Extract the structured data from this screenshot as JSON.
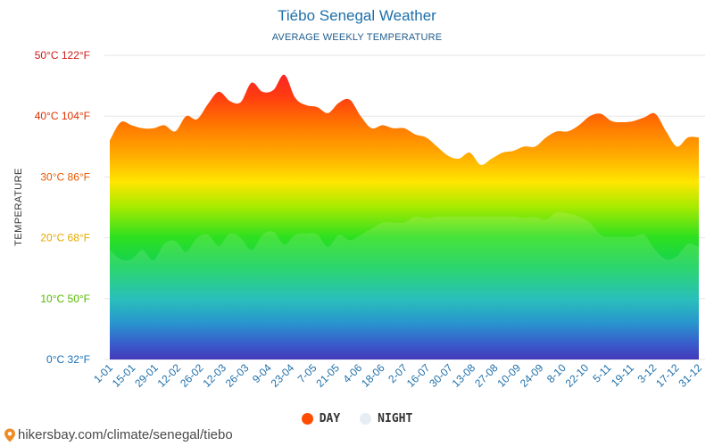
{
  "header": {
    "title": "Tiébo Senegal Weather",
    "subtitle": "AVERAGE WEEKLY TEMPERATURE"
  },
  "legend": {
    "day_label": "DAY",
    "night_label": "NIGHT",
    "day_color": "#ff4d00",
    "night_color": "#e6edf5"
  },
  "footer": {
    "url": "hikersbay.com/climate/senegal/tiebo",
    "pin_color": "#f08a24"
  },
  "chart_data": {
    "type": "area",
    "title": "Tiébo Senegal Weather",
    "subtitle": "AVERAGE WEEKLY TEMPERATURE",
    "ylabel": "TEMPERATURE",
    "ylim": [
      0,
      50
    ],
    "y_ticks": [
      {
        "value": 0,
        "label": "0°C 32°F",
        "color": "#1a6fb8"
      },
      {
        "value": 10,
        "label": "10°C 50°F",
        "color": "#55b800"
      },
      {
        "value": 20,
        "label": "20°C 68°F",
        "color": "#e8a800"
      },
      {
        "value": 30,
        "label": "30°C 86°F",
        "color": "#e85a00"
      },
      {
        "value": 40,
        "label": "40°C 104°F",
        "color": "#e03000"
      },
      {
        "value": 50,
        "label": "50°C 122°F",
        "color": "#d01818"
      }
    ],
    "x_tick_labels": [
      "1-01",
      "15-01",
      "29-01",
      "12-02",
      "26-02",
      "12-03",
      "26-03",
      "9-04",
      "23-04",
      "7-05",
      "21-05",
      "4-06",
      "18-06",
      "2-07",
      "16-07",
      "30-07",
      "13-08",
      "27-08",
      "10-09",
      "24-09",
      "8-10",
      "22-10",
      "5-11",
      "19-11",
      "3-12",
      "17-12",
      "31-12"
    ],
    "grid": true,
    "legend_position": "bottom",
    "series": [
      {
        "name": "DAY",
        "values": [
          36,
          39,
          38.5,
          38,
          38,
          38.5,
          37.5,
          40,
          39.5,
          42,
          44,
          42.5,
          42.3,
          45.5,
          44,
          44.3,
          46.8,
          43,
          41.8,
          41.5,
          40.5,
          42.2,
          42.7,
          40,
          38,
          38.5,
          38,
          38,
          37,
          36.5,
          35,
          33.5,
          33,
          34,
          32,
          33,
          34,
          34.3,
          35,
          35,
          36.5,
          37.5,
          37.5,
          38.5,
          40,
          40.4,
          39.2,
          39,
          39.2,
          39.8,
          40.4,
          37.5,
          35,
          36.5,
          36.5
        ]
      },
      {
        "name": "NIGHT",
        "values": [
          18,
          16.5,
          16.5,
          18,
          16.3,
          19,
          19.5,
          17.7,
          20,
          20.5,
          18.7,
          20.7,
          20,
          18,
          20.5,
          21,
          18.9,
          20.5,
          20.7,
          20.6,
          18.5,
          20.5,
          19.6,
          20.5,
          21.5,
          22.5,
          22.5,
          22.5,
          23.5,
          23.2,
          23.5,
          23.5,
          23.5,
          23.5,
          23.5,
          23.5,
          23.5,
          23.5,
          23.3,
          23.4,
          23,
          24.2,
          24,
          23.5,
          22.5,
          20.5,
          20.2,
          20.2,
          20.2,
          20.5,
          18,
          16.5,
          17,
          19,
          18.5
        ]
      }
    ]
  }
}
